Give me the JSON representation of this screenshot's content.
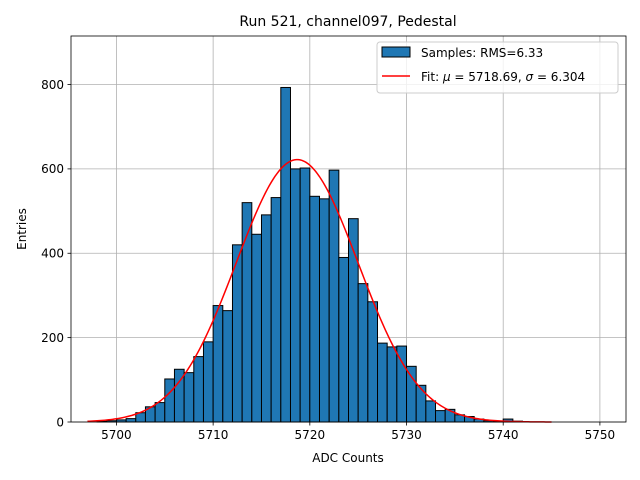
{
  "chart_data": {
    "type": "bar",
    "title": "Run 521, channel097, Pedestal",
    "xlabel": "ADC Counts",
    "ylabel": "Entries",
    "xlim": [
      5695.3,
      5752.7
    ],
    "ylim": [
      0,
      915
    ],
    "xticks": [
      5700,
      5710,
      5720,
      5730,
      5740,
      5750
    ],
    "yticks": [
      0,
      200,
      400,
      600,
      800
    ],
    "grid": true,
    "legend_position": "top-right",
    "bin_width": 1,
    "bins": {
      "left_edges": [
        5698,
        5699,
        5700,
        5701,
        5702,
        5703,
        5704,
        5705,
        5706,
        5707,
        5708,
        5709,
        5710,
        5711,
        5712,
        5713,
        5714,
        5715,
        5716,
        5717,
        5718,
        5719,
        5720,
        5721,
        5722,
        5723,
        5724,
        5725,
        5726,
        5727,
        5728,
        5729,
        5730,
        5731,
        5732,
        5733,
        5734,
        5735,
        5736,
        5737,
        5738,
        5739,
        5740,
        5741
      ],
      "counts": [
        2,
        3,
        5,
        8,
        22,
        36,
        46,
        102,
        125,
        117,
        155,
        190,
        276,
        264,
        420,
        520,
        445,
        491,
        532,
        793,
        600,
        602,
        535,
        529,
        597,
        390,
        482,
        328,
        285,
        187,
        178,
        180,
        132,
        87,
        50,
        27,
        30,
        17,
        13,
        7,
        3,
        2,
        7,
        2
      ]
    },
    "fit": {
      "mu": 5718.69,
      "sigma": 6.304,
      "amplitude": 622,
      "x_range": [
        5697,
        5745
      ]
    },
    "series": [
      {
        "name": "Samples: RMS=6.33",
        "color": "#1f77b4",
        "kind": "histogram"
      },
      {
        "name_prefix": "Fit: ",
        "name_mu": "μ",
        "name_mid": " = 5718.69, ",
        "name_sigma": "σ",
        "name_suffix": " = 6.304",
        "color": "#ff0000",
        "kind": "line"
      }
    ]
  }
}
